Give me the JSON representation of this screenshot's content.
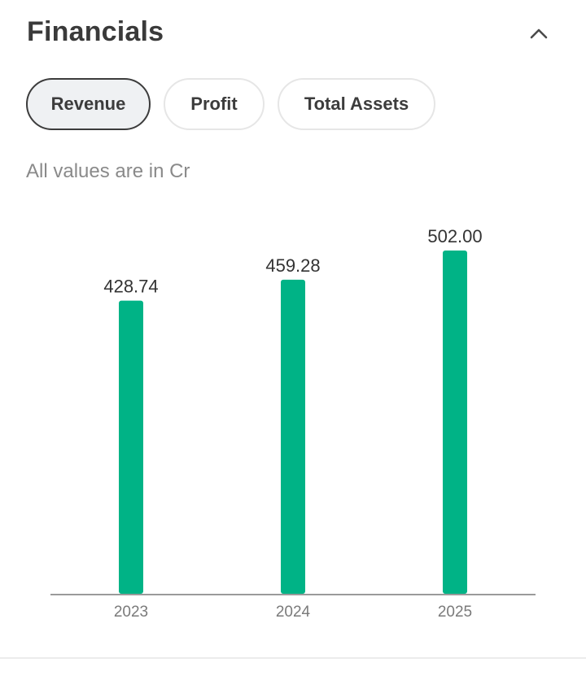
{
  "section": {
    "title": "Financials",
    "collapse_icon": "chevron-up-icon"
  },
  "tabs": [
    {
      "label": "Revenue",
      "active": true
    },
    {
      "label": "Profit",
      "active": false
    },
    {
      "label": "Total Assets",
      "active": false
    }
  ],
  "subtitle": "All values are in Cr",
  "colors": {
    "bar": "#00b386",
    "axis": "#9a9a9a",
    "active_tab_border": "#3c3c3c"
  },
  "chart_data": {
    "type": "bar",
    "categories": [
      "2023",
      "2024",
      "2025"
    ],
    "values": [
      428.74,
      459.28,
      502.0
    ],
    "value_labels": [
      "428.74",
      "459.28",
      "502.00"
    ],
    "title": "",
    "xlabel": "",
    "ylabel": "",
    "ylim": [
      0,
      502
    ],
    "grid": false
  }
}
